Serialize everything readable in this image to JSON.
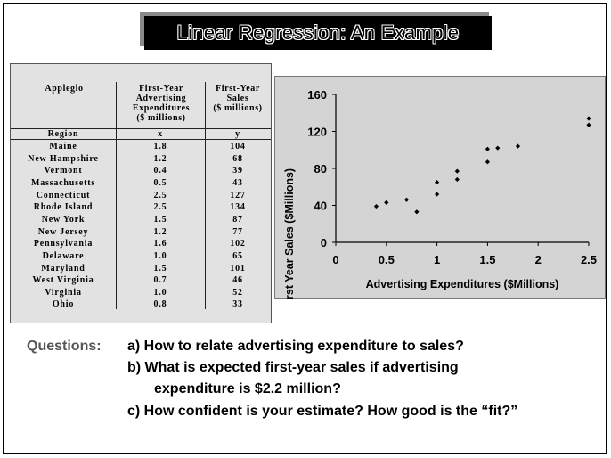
{
  "slide": {
    "title": "Linear Regression: An Example"
  },
  "table": {
    "company_header": "Appleglo",
    "col_x_header": [
      "First-Year",
      "Advertising",
      "Expenditures",
      "($ millions)"
    ],
    "col_y_header": [
      "First-Year",
      "Sales",
      "($ millions)"
    ],
    "region_header": "Region",
    "x_header": "x",
    "y_header": "y",
    "rows": [
      {
        "region": "Maine",
        "x": "1.8",
        "y": "104"
      },
      {
        "region": "New Hampshire",
        "x": "1.2",
        "y": "68"
      },
      {
        "region": "Vermont",
        "x": "0.4",
        "y": "39"
      },
      {
        "region": "Massachusetts",
        "x": "0.5",
        "y": "43"
      },
      {
        "region": "Connecticut",
        "x": "2.5",
        "y": "127"
      },
      {
        "region": "Rhode Island",
        "x": "2.5",
        "y": "134"
      },
      {
        "region": "New York",
        "x": "1.5",
        "y": "87"
      },
      {
        "region": "New Jersey",
        "x": "1.2",
        "y": "77"
      },
      {
        "region": "Pennsylvania",
        "x": "1.6",
        "y": "102"
      },
      {
        "region": "Delaware",
        "x": "1.0",
        "y": "65"
      },
      {
        "region": "Maryland",
        "x": "1.5",
        "y": "101"
      },
      {
        "region": "West Virginia",
        "x": "0.7",
        "y": "46"
      },
      {
        "region": "Virginia",
        "x": "1.0",
        "y": "52"
      },
      {
        "region": "Ohio",
        "x": "0.8",
        "y": "33"
      }
    ]
  },
  "chart_data": {
    "type": "scatter",
    "xlabel": "Advertising Expenditures ($Millions)",
    "ylabel": "First Year Sales ($Millions)",
    "xlim": [
      0,
      2.5
    ],
    "ylim": [
      0,
      160
    ],
    "xticks": [
      "0",
      "0.5",
      "1",
      "1.5",
      "2",
      "2.5"
    ],
    "yticks": [
      "0",
      "40",
      "80",
      "120",
      "160"
    ],
    "grid": false,
    "points": [
      {
        "x": 1.8,
        "y": 104
      },
      {
        "x": 1.2,
        "y": 68
      },
      {
        "x": 0.4,
        "y": 39
      },
      {
        "x": 0.5,
        "y": 43
      },
      {
        "x": 2.5,
        "y": 127
      },
      {
        "x": 2.5,
        "y": 134
      },
      {
        "x": 1.5,
        "y": 87
      },
      {
        "x": 1.2,
        "y": 77
      },
      {
        "x": 1.6,
        "y": 102
      },
      {
        "x": 1.0,
        "y": 65
      },
      {
        "x": 1.5,
        "y": 101
      },
      {
        "x": 0.7,
        "y": 46
      },
      {
        "x": 1.0,
        "y": 52
      },
      {
        "x": 0.8,
        "y": 33
      }
    ],
    "marker_color": "#000000",
    "background": "#d4d4d4"
  },
  "questions": {
    "label": "Questions:",
    "a": "a)  How to relate advertising expenditure to sales?",
    "b1": "b)  What is expected first-year sales if advertising",
    "b2": "expenditure is $2.2 million?",
    "c": "c)  How confident is your estimate?  How good is the “fit?”"
  }
}
